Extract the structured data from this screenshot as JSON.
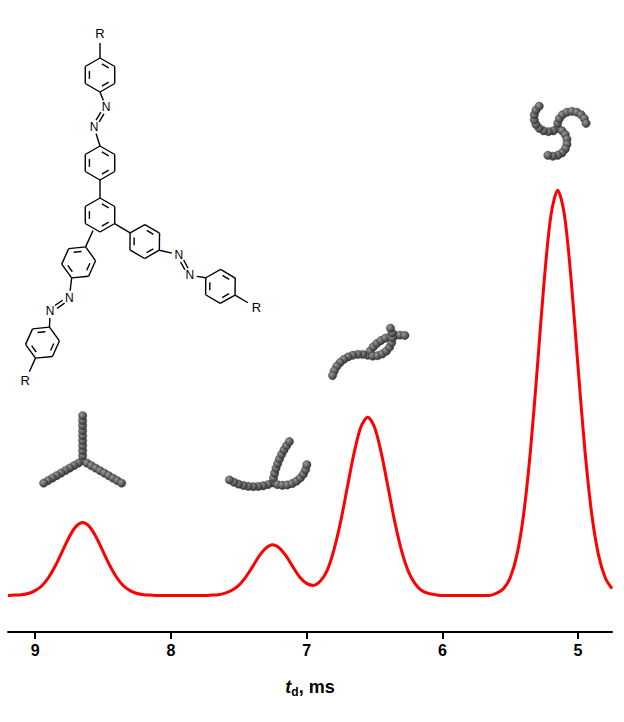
{
  "chart_data": {
    "type": "line",
    "x_label": "td, ms",
    "color": "#ff0000",
    "x": [
      9.2,
      9.15,
      9.1,
      9.05,
      9.0,
      8.95,
      8.9,
      8.85,
      8.8,
      8.75,
      8.7,
      8.65,
      8.6,
      8.55,
      8.5,
      8.45,
      8.4,
      8.35,
      8.3,
      8.25,
      8.2,
      8.15,
      8.1,
      8.05,
      8.0,
      7.95,
      7.9,
      7.85,
      7.8,
      7.75,
      7.7,
      7.65,
      7.6,
      7.55,
      7.5,
      7.45,
      7.4,
      7.35,
      7.3,
      7.25,
      7.2,
      7.15,
      7.1,
      7.05,
      7.0,
      6.95,
      6.9,
      6.85,
      6.8,
      6.75,
      6.7,
      6.65,
      6.6,
      6.55,
      6.5,
      6.45,
      6.4,
      6.35,
      6.3,
      6.25,
      6.2,
      6.15,
      6.1,
      6.05,
      6.0,
      5.95,
      5.9,
      5.85,
      5.8,
      5.75,
      5.7,
      5.65,
      5.6,
      5.55,
      5.5,
      5.45,
      5.4,
      5.35,
      5.3,
      5.25,
      5.2,
      5.15,
      5.1,
      5.05,
      5.0,
      4.95,
      4.9,
      4.85,
      4.8,
      4.75
    ],
    "values": [
      0,
      0.1,
      0.2,
      0.5,
      1.2,
      2.4,
      4.5,
      7.4,
      10.9,
      14.4,
      17,
      18,
      17,
      14.4,
      10.9,
      7.4,
      4.5,
      2.4,
      1.2,
      0.5,
      0.2,
      0.1,
      0,
      0,
      0,
      0,
      0,
      0,
      0,
      0,
      0.1,
      0.2,
      0.6,
      1.3,
      2.5,
      4.5,
      7,
      9.7,
      11.7,
      12.5,
      11.7,
      9.7,
      7,
      4.5,
      3,
      2.5,
      3.5,
      6.1,
      11.1,
      18.1,
      26.7,
      35.2,
      41.6,
      44,
      41.6,
      35.2,
      26.7,
      18.1,
      11,
      5.9,
      2.9,
      1.2,
      0.5,
      0.2,
      0,
      0,
      0,
      0,
      0,
      0,
      0,
      0,
      0.6,
      1.7,
      4.4,
      10.1,
      20.3,
      36,
      56.3,
      77.5,
      93.8,
      100,
      93.8,
      77.5,
      56.3,
      36,
      20.3,
      10.1,
      4.4,
      1.7
    ],
    "xlim": [
      9.2,
      4.75
    ],
    "xticks": [
      9,
      8,
      7,
      6,
      5
    ],
    "ylim": [
      -9,
      105
    ],
    "yticks": [],
    "tick_labels": "x",
    "grid": false,
    "annotations": {
      "structure": {
        "substituent": "R",
        "azo": "N"
      }
    }
  }
}
